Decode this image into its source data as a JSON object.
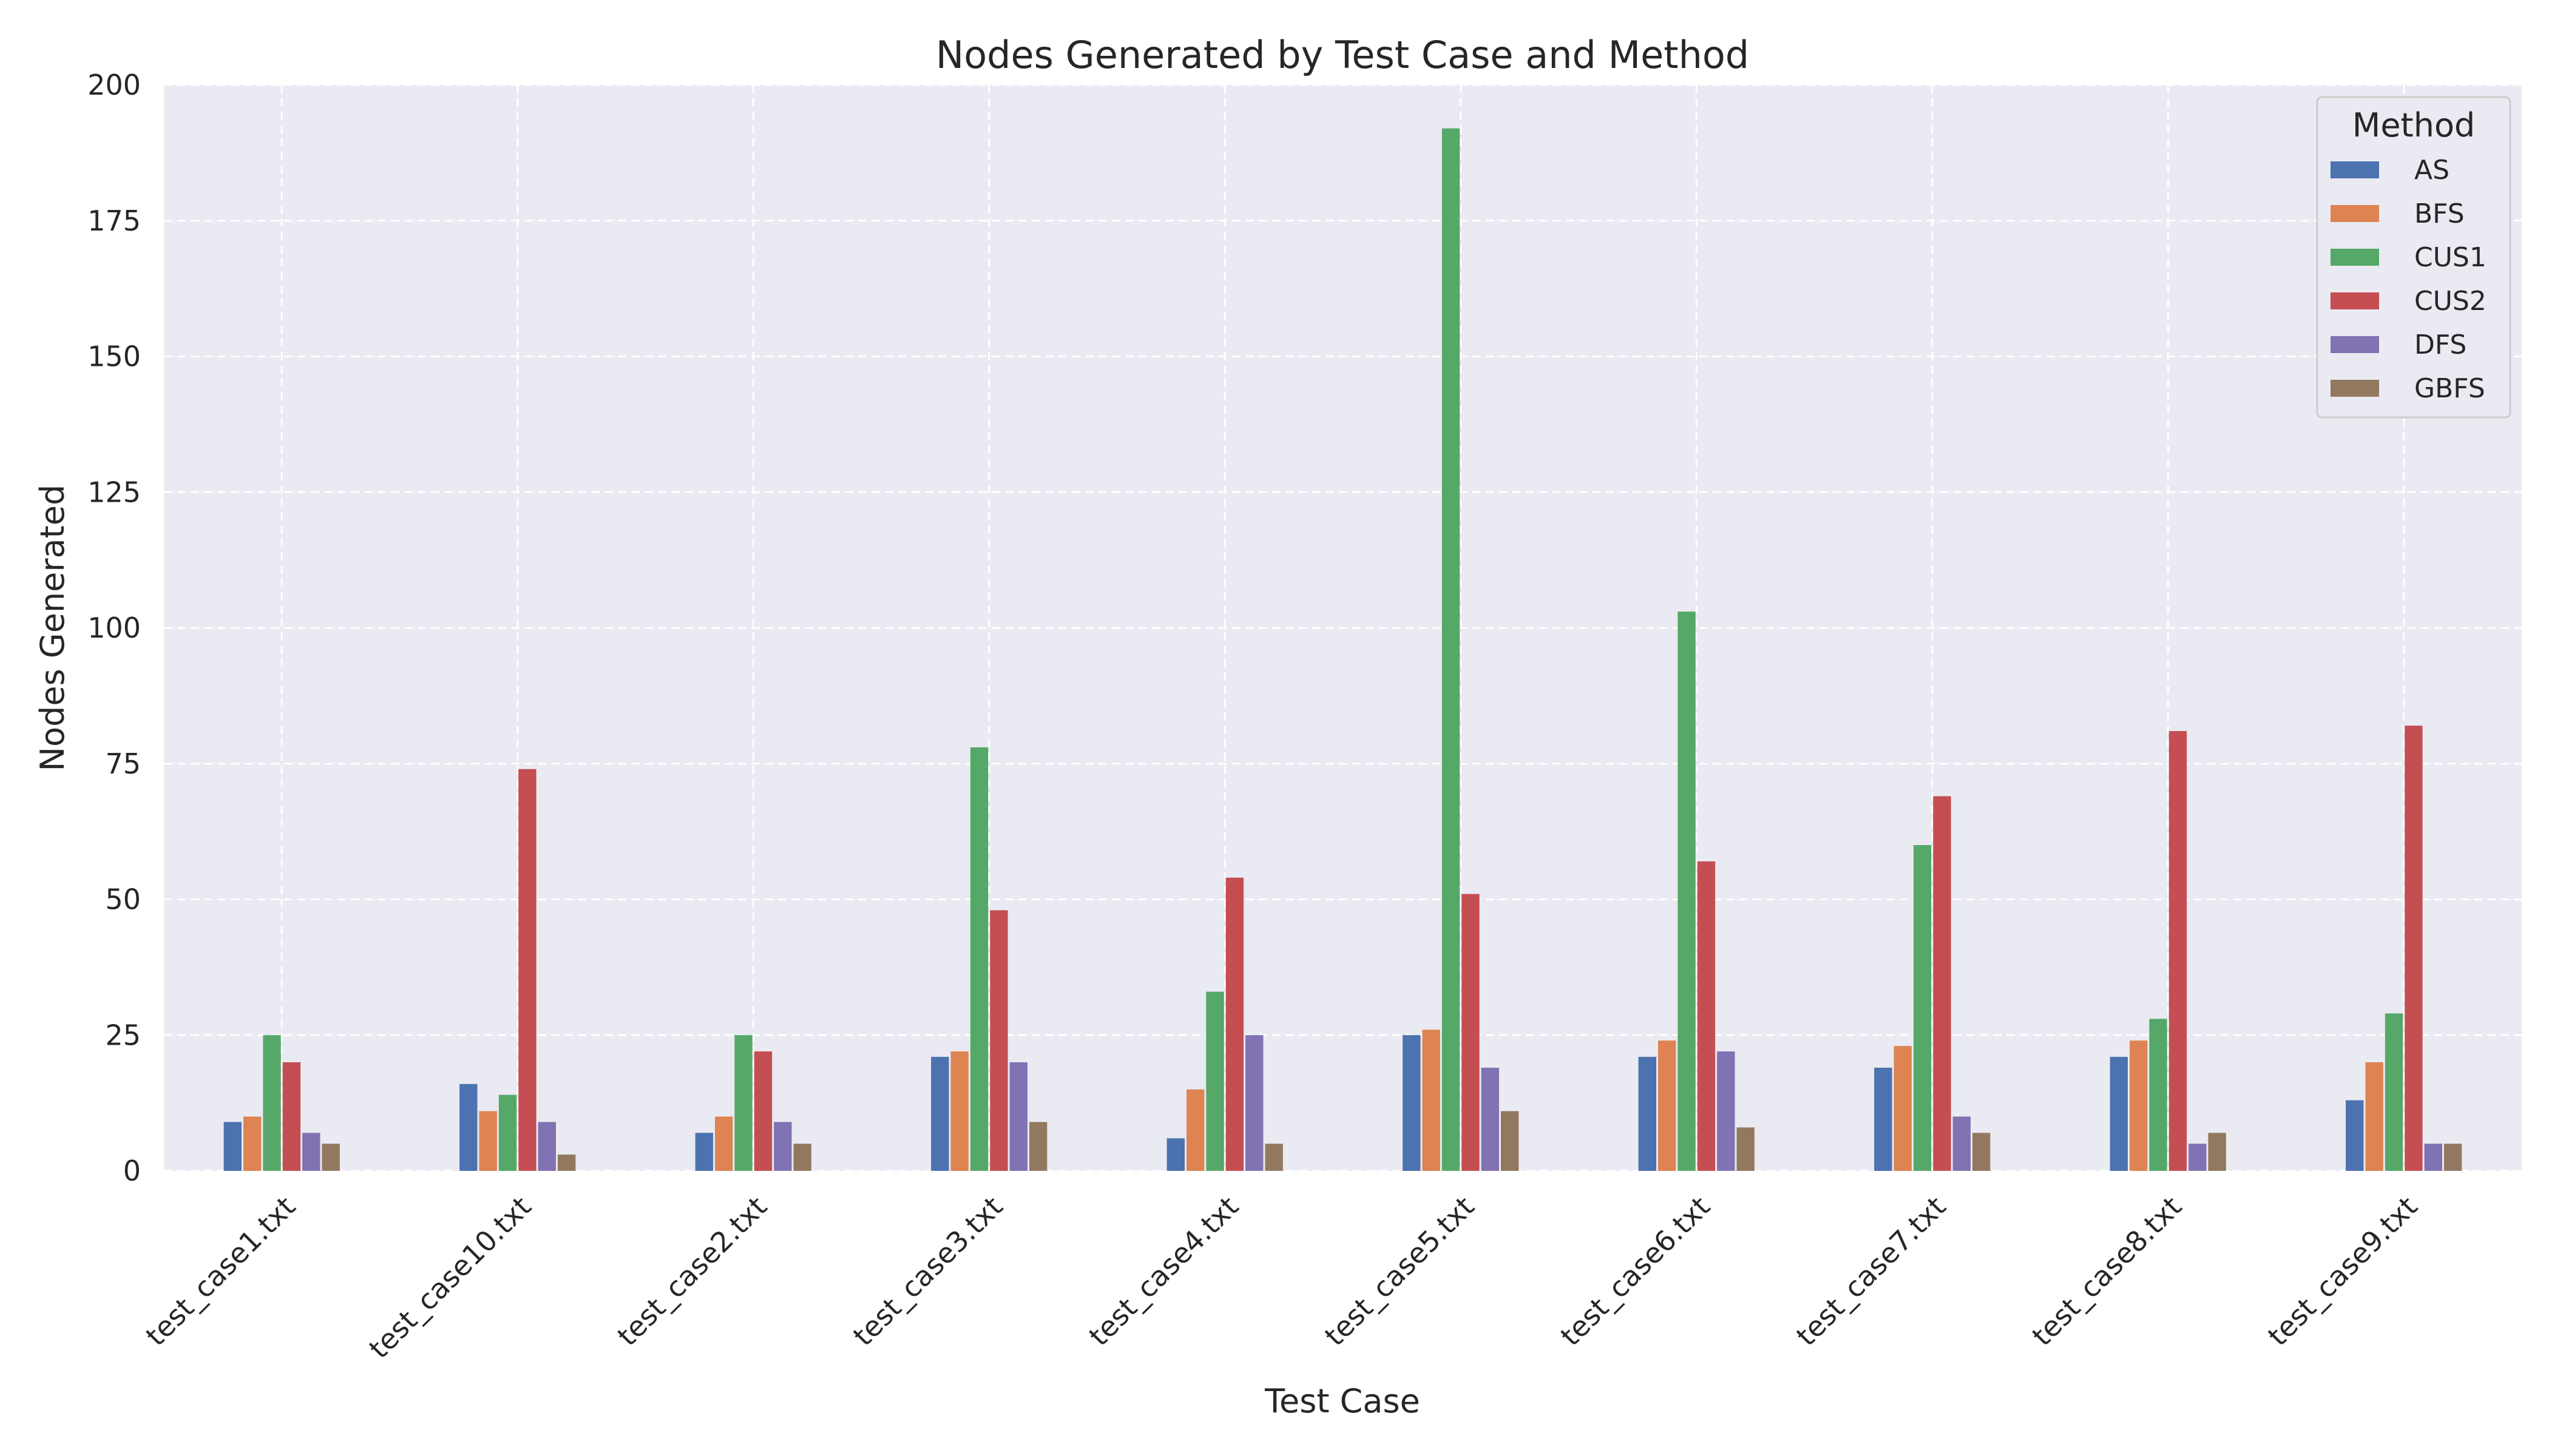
{
  "chart_data": {
    "type": "bar",
    "title": "Nodes Generated by Test Case and Method",
    "xlabel": "Test Case",
    "ylabel": "Nodes Generated",
    "ylim": [
      0,
      200
    ],
    "yticks": [
      0,
      25,
      50,
      75,
      100,
      125,
      150,
      175,
      200
    ],
    "grid": true,
    "legend_title": "Method",
    "legend_position": "top-right",
    "categories": [
      "test_case1.txt",
      "test_case10.txt",
      "test_case2.txt",
      "test_case3.txt",
      "test_case4.txt",
      "test_case5.txt",
      "test_case6.txt",
      "test_case7.txt",
      "test_case8.txt",
      "test_case9.txt"
    ],
    "series": [
      {
        "name": "AS",
        "color": "#4c72b0",
        "values": [
          9,
          16,
          7,
          21,
          6,
          25,
          21,
          19,
          21,
          13
        ]
      },
      {
        "name": "BFS",
        "color": "#dd8452",
        "values": [
          10,
          11,
          10,
          22,
          15,
          26,
          24,
          23,
          24,
          20
        ]
      },
      {
        "name": "CUS1",
        "color": "#55a868",
        "values": [
          25,
          14,
          25,
          78,
          33,
          192,
          103,
          60,
          28,
          29
        ]
      },
      {
        "name": "CUS2",
        "color": "#c44e52",
        "values": [
          20,
          74,
          22,
          48,
          54,
          51,
          57,
          69,
          81,
          82
        ]
      },
      {
        "name": "DFS",
        "color": "#8172b3",
        "values": [
          7,
          9,
          9,
          20,
          25,
          19,
          22,
          10,
          5,
          5
        ]
      },
      {
        "name": "GBFS",
        "color": "#937860",
        "values": [
          5,
          3,
          5,
          9,
          5,
          11,
          8,
          7,
          7,
          5
        ]
      }
    ]
  }
}
